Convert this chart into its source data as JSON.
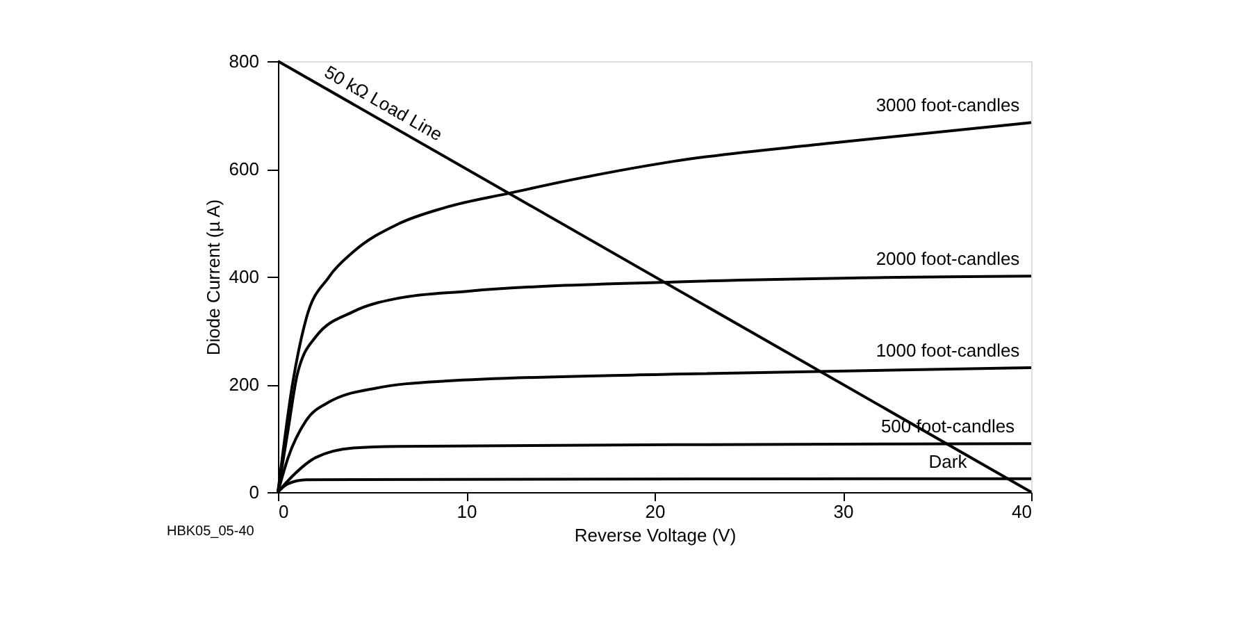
{
  "chart_data": {
    "type": "line",
    "xlabel": "Reverse Voltage (V)",
    "ylabel": "Diode Current (µ A)",
    "xlim": [
      0,
      40
    ],
    "ylim": [
      0,
      800
    ],
    "xticks": [
      0,
      10,
      20,
      30,
      40
    ],
    "yticks": [
      0,
      200,
      400,
      600,
      800
    ],
    "grid": false,
    "marker": "none",
    "line_style": "solid",
    "annotations": [
      "HBK05_05-40"
    ],
    "series": [
      {
        "name": "3000 foot-candles",
        "color": "#000000",
        "x": [
          0,
          0.78,
          1.5,
          2.7,
          4,
          6.4,
          8.85,
          12.3,
          16.2,
          19.6,
          21,
          29.4,
          40
        ],
        "values": [
          0,
          202,
          322,
          399,
          446,
          498,
          528,
          555,
          584,
          606,
          614,
          648,
          686
        ]
      },
      {
        "name": "2000 foot-candles",
        "color": "#000000",
        "x": [
          0,
          0.54,
          1.03,
          2,
          4,
          6.4,
          10.1,
          21,
          40
        ],
        "values": [
          0,
          116,
          219,
          288,
          335,
          360,
          373,
          390,
          401
        ]
      },
      {
        "name": "1000 foot-candles",
        "color": "#000000",
        "x": [
          0,
          0.54,
          1.5,
          2.7,
          5.2,
          8.85,
          21,
          40
        ],
        "values": [
          0,
          64,
          133,
          167,
          193,
          206,
          219,
          231
        ]
      },
      {
        "name": "500 foot-candles",
        "color": "#000000",
        "x": [
          0,
          0.78,
          2,
          4,
          6.4,
          21,
          40
        ],
        "values": [
          0,
          30,
          64,
          82,
          85,
          88,
          90
        ]
      },
      {
        "name": "Dark",
        "color": "#000000",
        "x": [
          0,
          0.5,
          1.5,
          40
        ],
        "values": [
          0,
          15,
          23,
          25
        ]
      },
      {
        "name": "50 kΩ Load Line",
        "color": "#000000",
        "x": [
          0,
          40
        ],
        "values": [
          800,
          0
        ]
      }
    ]
  }
}
